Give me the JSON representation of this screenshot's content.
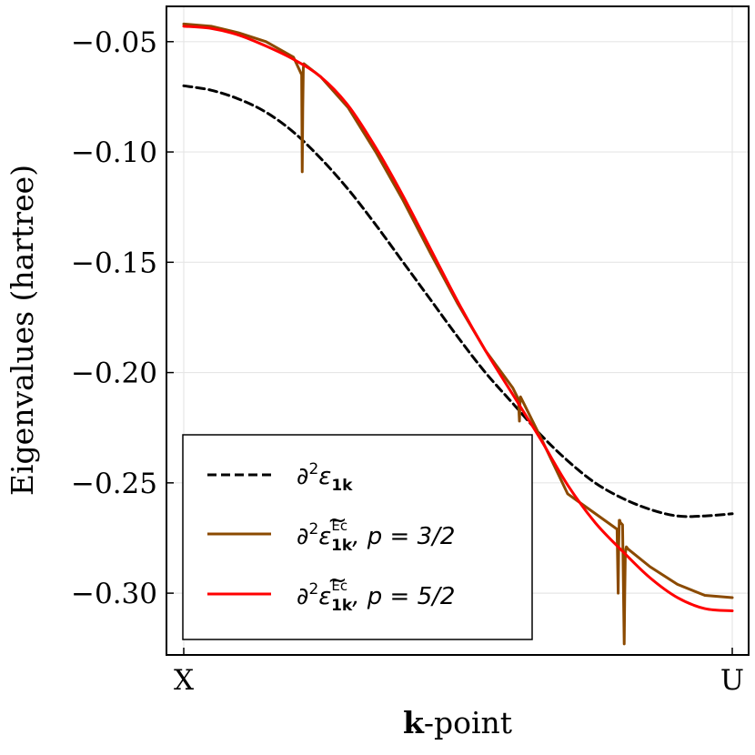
{
  "chart_data": {
    "type": "line",
    "xlabel_bold": "k",
    "xlabel_rest": "-point",
    "ylabel": "Eigenvalues (hartree)",
    "xticks": [
      "X",
      "U"
    ],
    "xlim": [
      0,
      1
    ],
    "ylim": [
      -0.328,
      -0.034
    ],
    "yticks": [
      -0.05,
      -0.1,
      -0.15,
      -0.2,
      -0.25,
      -0.3
    ],
    "ytick_labels": [
      "−0.05",
      "−0.10",
      "−0.15",
      "−0.20",
      "−0.25",
      "−0.30"
    ],
    "grid": true,
    "legend_position": "bottom-left",
    "series": [
      {
        "name": "∂²ε₁ₖ",
        "color": "#000000",
        "style": "dashed",
        "x": [
          0,
          0.05,
          0.1,
          0.15,
          0.2,
          0.25,
          0.3,
          0.35,
          0.4,
          0.45,
          0.5,
          0.55,
          0.6,
          0.65,
          0.7,
          0.75,
          0.8,
          0.85,
          0.9,
          0.95,
          1.0
        ],
        "y": [
          -0.07,
          -0.072,
          -0.076,
          -0.082,
          -0.091,
          -0.103,
          -0.117,
          -0.133,
          -0.15,
          -0.167,
          -0.184,
          -0.2,
          -0.214,
          -0.228,
          -0.24,
          -0.25,
          -0.257,
          -0.262,
          -0.265,
          -0.265,
          -0.264
        ]
      },
      {
        "name": "∂²ε̃₁ₖ^Ec, p = 3/2",
        "color": "#8B4A00",
        "style": "solid",
        "x": [
          0,
          0.05,
          0.1,
          0.15,
          0.2,
          0.215,
          0.216,
          0.217,
          0.218,
          0.219,
          0.25,
          0.3,
          0.35,
          0.4,
          0.45,
          0.5,
          0.55,
          0.6,
          0.61,
          0.612,
          0.613,
          0.614,
          0.62,
          0.65,
          0.7,
          0.79,
          0.792,
          0.793,
          0.794,
          0.795,
          0.796,
          0.8,
          0.803,
          0.804,
          0.805,
          0.806,
          0.807,
          0.81,
          0.85,
          0.9,
          0.95,
          1.0
        ],
        "y": [
          -0.042,
          -0.043,
          -0.046,
          -0.05,
          -0.057,
          -0.065,
          -0.109,
          -0.08,
          -0.062,
          -0.06,
          -0.066,
          -0.08,
          -0.1,
          -0.122,
          -0.146,
          -0.169,
          -0.19,
          -0.207,
          -0.212,
          -0.222,
          -0.214,
          -0.211,
          -0.214,
          -0.229,
          -0.255,
          -0.271,
          -0.3,
          -0.278,
          -0.267,
          -0.267,
          -0.268,
          -0.269,
          -0.323,
          -0.3,
          -0.283,
          -0.28,
          -0.279,
          -0.28,
          -0.288,
          -0.296,
          -0.301,
          -0.302
        ]
      },
      {
        "name": "∂²ε̃₁ₖ^Ec, p = 5/2",
        "color": "#FF0000",
        "style": "solid",
        "x": [
          0,
          0.05,
          0.1,
          0.15,
          0.2,
          0.25,
          0.3,
          0.35,
          0.4,
          0.45,
          0.5,
          0.55,
          0.6,
          0.65,
          0.7,
          0.75,
          0.8,
          0.85,
          0.9,
          0.95,
          1.0
        ],
        "y": [
          -0.043,
          -0.044,
          -0.047,
          -0.052,
          -0.058,
          -0.066,
          -0.079,
          -0.098,
          -0.12,
          -0.144,
          -0.168,
          -0.19,
          -0.21,
          -0.23,
          -0.251,
          -0.268,
          -0.281,
          -0.293,
          -0.302,
          -0.307,
          -0.308
        ]
      }
    ],
    "legend": [
      {
        "symbol": "∂",
        "sup": "2",
        "rest": "ε",
        "sub": "1k",
        "tilde": false,
        "ec": "",
        "p": ""
      },
      {
        "symbol": "∂",
        "sup": "2",
        "rest": "ε",
        "sub": "1k",
        "tilde": true,
        "ec": "Ec",
        "p": ", p = 3/2"
      },
      {
        "symbol": "∂",
        "sup": "2",
        "rest": "ε",
        "sub": "1k",
        "tilde": true,
        "ec": "Ec",
        "p": ", p = 5/2"
      }
    ]
  }
}
